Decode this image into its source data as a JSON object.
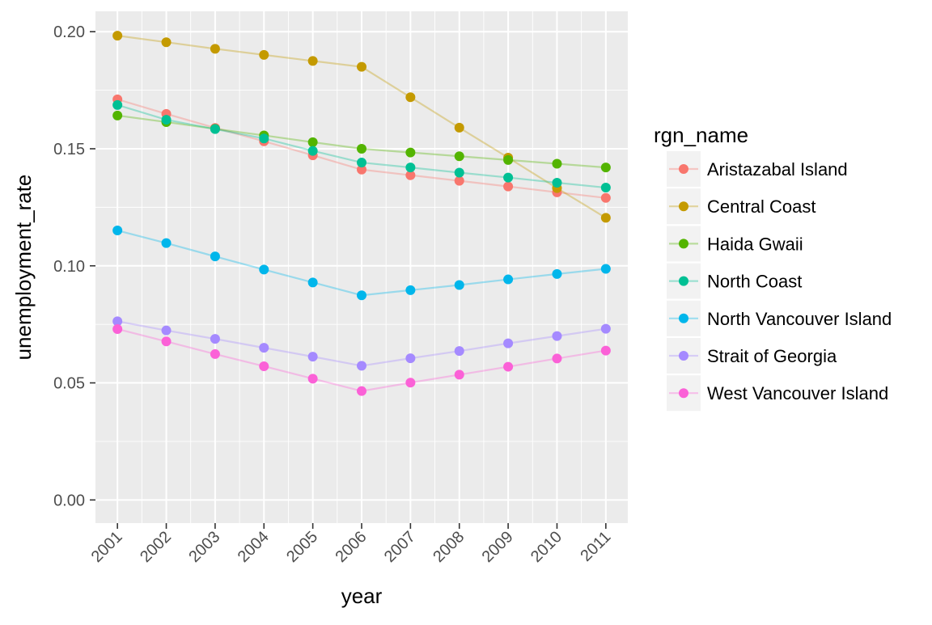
{
  "chart_data": {
    "type": "line",
    "xlabel": "year",
    "ylabel": "unemployment_rate",
    "x": [
      2001,
      2002,
      2003,
      2004,
      2005,
      2006,
      2007,
      2008,
      2009,
      2010,
      2011
    ],
    "xlim": [
      2000.55,
      2011.45
    ],
    "ylim": [
      -0.0099,
      0.2087
    ],
    "yticks": [
      0.0,
      0.05,
      0.1,
      0.15,
      0.2
    ],
    "ytick_labels": [
      "0.00",
      "0.05",
      "0.10",
      "0.15",
      "0.20"
    ],
    "grid": true,
    "legend": {
      "title": "rgn_name",
      "position": "right"
    },
    "series": [
      {
        "name": "Aristazabal Island",
        "color": "#F8766D",
        "values": [
          0.1711,
          0.1649,
          0.1589,
          0.1532,
          0.1472,
          0.1411,
          0.1387,
          0.1363,
          0.1339,
          0.1314,
          0.129
        ]
      },
      {
        "name": "Central Coast",
        "color": "#C49A00",
        "values": [
          0.1983,
          0.1955,
          0.1927,
          0.1901,
          0.1875,
          0.185,
          0.172,
          0.159,
          0.1462,
          0.1332,
          0.1205
        ]
      },
      {
        "name": "Haida Gwaii",
        "color": "#53B400",
        "values": [
          0.1642,
          0.1614,
          0.1585,
          0.1557,
          0.1528,
          0.15,
          0.1484,
          0.1468,
          0.1452,
          0.1436,
          0.142
        ]
      },
      {
        "name": "North Coast",
        "color": "#00C094",
        "values": [
          0.1687,
          0.1624,
          0.1584,
          0.1544,
          0.1491,
          0.1441,
          0.142,
          0.1398,
          0.1377,
          0.1355,
          0.1334
        ]
      },
      {
        "name": "North Vancouver Island",
        "color": "#00B6EB",
        "values": [
          0.1151,
          0.1097,
          0.104,
          0.0984,
          0.0929,
          0.0874,
          0.0896,
          0.0918,
          0.0942,
          0.0965,
          0.0987
        ]
      },
      {
        "name": "Strait of Georgia",
        "color": "#A58AFF",
        "values": [
          0.0763,
          0.0724,
          0.0688,
          0.065,
          0.0612,
          0.0573,
          0.0605,
          0.0636,
          0.0669,
          0.07,
          0.0731
        ]
      },
      {
        "name": "West Vancouver Island",
        "color": "#FB61D7",
        "values": [
          0.073,
          0.0677,
          0.0623,
          0.0571,
          0.0518,
          0.0465,
          0.0501,
          0.0535,
          0.0569,
          0.0604,
          0.0638
        ]
      }
    ]
  }
}
